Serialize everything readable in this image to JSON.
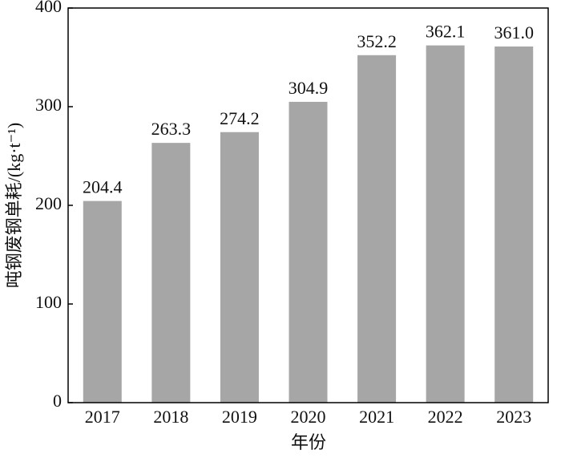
{
  "chart_data": {
    "type": "bar",
    "x_label": "年份",
    "y_label": "吨钢废钢单耗/(kg·t⁻¹)",
    "categories": [
      "2017",
      "2018",
      "2019",
      "2020",
      "2021",
      "2022",
      "2023"
    ],
    "values": [
      204.4,
      263.3,
      274.2,
      304.9,
      352.2,
      362.1,
      361.0
    ],
    "value_labels": [
      "204.4",
      "263.3",
      "274.2",
      "304.9",
      "352.2",
      "362.1",
      "361.0"
    ],
    "color": "#a6a6a6",
    "ylim": [
      0,
      400
    ],
    "yticks": [
      0,
      100,
      200,
      300,
      400
    ]
  }
}
